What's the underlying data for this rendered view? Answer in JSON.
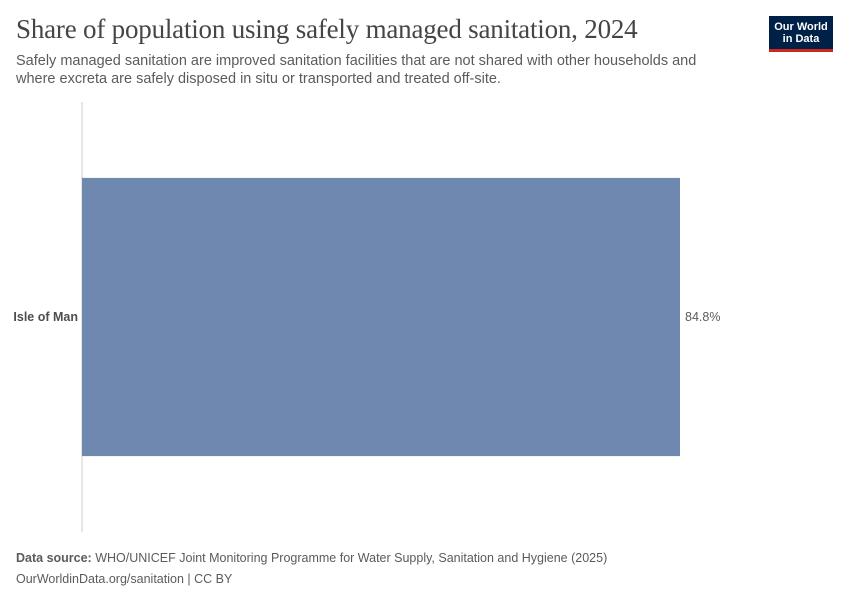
{
  "header": {
    "title": "Share of population using safely managed sanitation, 2024",
    "subtitle": "Safely managed sanitation are improved sanitation facilities that are not shared with other households and where excreta are safely disposed in situ or transported and treated off-site.",
    "logo_line1": "Our World",
    "logo_line2": "in Data"
  },
  "footer": {
    "source_label": "Data source:",
    "source_text": "WHO/UNICEF Joint Monitoring Programme for Water Supply, Sanitation and Hygiene (2025)",
    "link_text": "OurWorldinData.org/sanitation | CC BY"
  },
  "colors": {
    "bar": "#6f88b0",
    "axis": "#cccccc",
    "logo_bg": "#002147",
    "logo_accent": "#ce261e"
  },
  "chart_data": {
    "type": "bar",
    "orientation": "horizontal",
    "title": "Share of population using safely managed sanitation, 2024",
    "categories": [
      "Isle of Man"
    ],
    "values": [
      84.8
    ],
    "value_labels": [
      "84.8%"
    ],
    "unit": "%",
    "xlim": [
      0,
      84.8
    ],
    "grid": false,
    "legend": "none"
  }
}
